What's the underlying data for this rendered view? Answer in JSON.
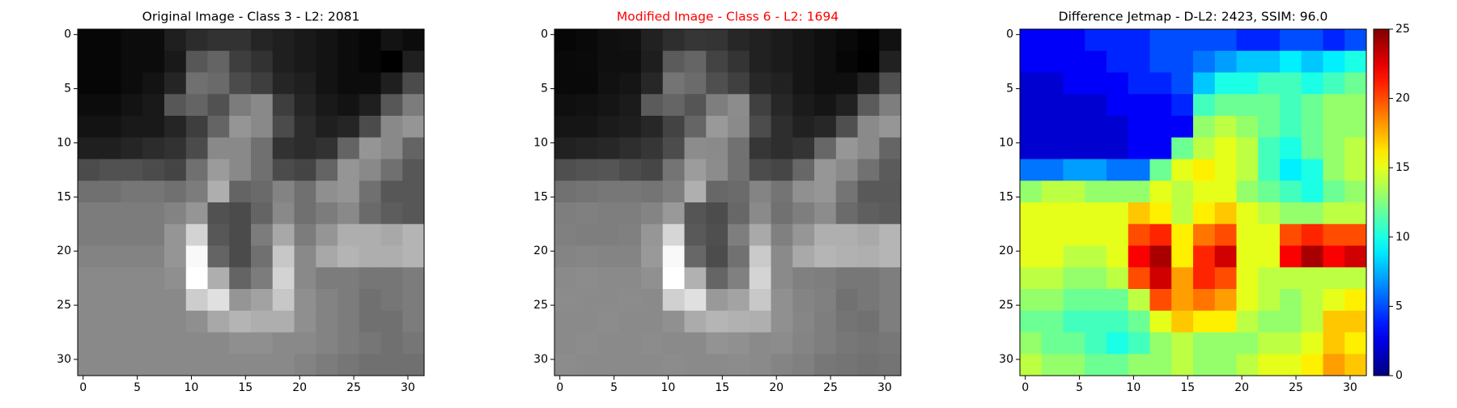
{
  "chart_data": [
    {
      "type": "heatmap",
      "title": "Original Image - Class 3 - L2: 2081",
      "title_color": "#000000",
      "cmap": "gray",
      "xlim": [
        -0.5,
        31.5
      ],
      "ylim": [
        31.5,
        -0.5
      ],
      "xticks": [
        0,
        5,
        10,
        15,
        20,
        25,
        30
      ],
      "yticks": [
        0,
        5,
        10,
        15,
        20,
        25,
        30
      ],
      "values": [
        [
          35,
          35,
          40,
          40,
          55,
          65,
          70,
          70,
          60,
          55,
          50,
          45,
          40,
          35,
          45,
          40
        ],
        [
          35,
          35,
          40,
          40,
          50,
          100,
          110,
          80,
          70,
          55,
          50,
          45,
          40,
          35,
          30,
          55
        ],
        [
          35,
          35,
          40,
          45,
          60,
          120,
          115,
          90,
          80,
          60,
          55,
          45,
          40,
          40,
          55,
          90
        ],
        [
          40,
          40,
          45,
          50,
          100,
          110,
          95,
          130,
          140,
          80,
          60,
          50,
          45,
          55,
          100,
          130
        ],
        [
          45,
          45,
          50,
          50,
          60,
          80,
          110,
          150,
          140,
          90,
          65,
          55,
          60,
          90,
          140,
          150
        ],
        [
          55,
          55,
          60,
          65,
          70,
          90,
          140,
          140,
          120,
          70,
          65,
          70,
          110,
          150,
          140,
          110
        ],
        [
          90,
          95,
          95,
          90,
          85,
          120,
          155,
          140,
          120,
          90,
          85,
          110,
          150,
          140,
          120,
          100
        ],
        [
          120,
          120,
          125,
          125,
          120,
          130,
          170,
          110,
          115,
          135,
          120,
          145,
          150,
          120,
          100,
          100
        ],
        [
          130,
          130,
          130,
          130,
          135,
          150,
          95,
          90,
          110,
          140,
          120,
          130,
          140,
          115,
          105,
          100
        ],
        [
          130,
          130,
          130,
          130,
          150,
          200,
          100,
          90,
          130,
          165,
          130,
          150,
          170,
          170,
          165,
          175
        ],
        [
          135,
          135,
          135,
          135,
          150,
          230,
          110,
          90,
          120,
          190,
          140,
          165,
          175,
          170,
          170,
          175
        ],
        [
          140,
          140,
          140,
          140,
          145,
          235,
          170,
          110,
          130,
          200,
          140,
          130,
          130,
          125,
          125,
          130
        ],
        [
          140,
          140,
          140,
          140,
          140,
          195,
          210,
          150,
          160,
          190,
          145,
          135,
          130,
          120,
          125,
          130
        ],
        [
          140,
          140,
          140,
          140,
          140,
          145,
          165,
          175,
          170,
          170,
          145,
          135,
          130,
          120,
          120,
          130
        ],
        [
          140,
          140,
          140,
          140,
          140,
          140,
          140,
          145,
          145,
          140,
          140,
          135,
          130,
          125,
          120,
          125
        ],
        [
          140,
          140,
          140,
          140,
          140,
          140,
          140,
          140,
          140,
          140,
          135,
          130,
          125,
          120,
          120,
          120
        ]
      ]
    },
    {
      "type": "heatmap",
      "title": "Modified Image - Class 6 - L2: 1694",
      "title_color": "#ff0000",
      "cmap": "gray",
      "xlim": [
        -0.5,
        31.5
      ],
      "ylim": [
        31.5,
        -0.5
      ],
      "xticks": [
        0,
        5,
        10,
        15,
        20,
        25,
        30
      ],
      "yticks": [
        0,
        5,
        10,
        15,
        20,
        25,
        30
      ],
      "values": [
        [
          33,
          35,
          40,
          42,
          55,
          65,
          72,
          70,
          60,
          55,
          50,
          45,
          40,
          35,
          30,
          42
        ],
        [
          35,
          36,
          40,
          40,
          52,
          102,
          110,
          82,
          70,
          55,
          50,
          45,
          40,
          33,
          28,
          55
        ],
        [
          35,
          35,
          42,
          45,
          60,
          122,
          115,
          92,
          80,
          60,
          55,
          45,
          40,
          40,
          55,
          92
        ],
        [
          40,
          42,
          45,
          50,
          102,
          110,
          97,
          130,
          142,
          80,
          60,
          50,
          45,
          55,
          102,
          130
        ],
        [
          45,
          45,
          50,
          52,
          60,
          82,
          110,
          152,
          140,
          90,
          65,
          55,
          60,
          92,
          140,
          150
        ],
        [
          55,
          57,
          60,
          65,
          72,
          90,
          142,
          140,
          120,
          72,
          65,
          70,
          112,
          150,
          140,
          110
        ],
        [
          92,
          95,
          97,
          90,
          85,
          122,
          155,
          142,
          120,
          90,
          85,
          112,
          150,
          140,
          120,
          102
        ],
        [
          120,
          122,
          125,
          125,
          122,
          130,
          170,
          112,
          115,
          135,
          122,
          145,
          150,
          122,
          100,
          100
        ],
        [
          130,
          132,
          130,
          130,
          135,
          152,
          97,
          90,
          112,
          140,
          120,
          130,
          142,
          115,
          105,
          102
        ],
        [
          132,
          130,
          130,
          132,
          150,
          202,
          100,
          92,
          130,
          165,
          132,
          150,
          170,
          170,
          165,
          175
        ],
        [
          135,
          137,
          135,
          135,
          152,
          230,
          112,
          90,
          120,
          192,
          140,
          165,
          175,
          172,
          170,
          175
        ],
        [
          140,
          142,
          140,
          140,
          145,
          235,
          172,
          110,
          132,
          200,
          140,
          132,
          130,
          125,
          125,
          130
        ],
        [
          142,
          140,
          140,
          142,
          140,
          197,
          210,
          152,
          160,
          190,
          145,
          135,
          132,
          120,
          125,
          130
        ],
        [
          140,
          140,
          142,
          140,
          140,
          145,
          167,
          175,
          172,
          170,
          145,
          137,
          130,
          122,
          120,
          130
        ],
        [
          140,
          142,
          140,
          140,
          142,
          140,
          140,
          147,
          145,
          140,
          142,
          135,
          130,
          125,
          122,
          125
        ],
        [
          142,
          140,
          140,
          140,
          140,
          142,
          140,
          140,
          142,
          140,
          135,
          132,
          125,
          122,
          120,
          122
        ]
      ]
    },
    {
      "type": "heatmap",
      "title": "Difference Jetmap - D-L2: 2423, SSIM: 96.0",
      "title_color": "#000000",
      "cmap": "jet",
      "xlim": [
        -0.5,
        31.5
      ],
      "ylim": [
        31.5,
        -0.5
      ],
      "xticks": [
        0,
        5,
        10,
        15,
        20,
        25,
        30
      ],
      "yticks": [
        0,
        5,
        10,
        15,
        20,
        25,
        30
      ],
      "clim": [
        0,
        25
      ],
      "cticks": [
        0,
        5,
        10,
        15,
        20,
        25
      ],
      "values": [
        [
          3,
          3,
          3,
          4,
          4,
          4,
          5,
          5,
          5,
          5,
          4,
          4,
          5,
          5,
          4,
          5
        ],
        [
          3,
          3,
          3,
          3,
          4,
          4,
          5,
          5,
          6,
          7,
          8,
          8,
          9,
          8,
          9,
          10
        ],
        [
          2,
          2,
          3,
          3,
          3,
          4,
          4,
          5,
          8,
          10,
          10,
          11,
          11,
          10,
          11,
          12
        ],
        [
          2,
          2,
          2,
          2,
          3,
          3,
          3,
          4,
          11,
          12,
          12,
          12,
          11,
          12,
          13,
          13
        ],
        [
          2,
          2,
          2,
          2,
          2,
          3,
          3,
          3,
          13,
          14,
          13,
          12,
          11,
          12,
          13,
          13
        ],
        [
          2,
          2,
          2,
          2,
          2,
          3,
          3,
          12,
          14,
          15,
          14,
          11,
          10,
          12,
          13,
          14
        ],
        [
          6,
          6,
          7,
          7,
          6,
          6,
          12,
          15,
          16,
          15,
          14,
          11,
          9,
          10,
          13,
          14
        ],
        [
          13,
          14,
          14,
          13,
          13,
          13,
          15,
          14,
          15,
          15,
          13,
          12,
          11,
          10,
          12,
          13
        ],
        [
          15,
          15,
          15,
          15,
          15,
          17,
          16,
          14,
          16,
          17,
          15,
          14,
          13,
          13,
          14,
          14
        ],
        [
          15,
          15,
          15,
          15,
          15,
          20,
          21,
          16,
          19,
          20,
          15,
          15,
          20,
          21,
          20,
          20
        ],
        [
          15,
          15,
          14,
          14,
          15,
          22,
          24,
          16,
          21,
          23,
          15,
          15,
          22,
          24,
          22,
          23
        ],
        [
          14,
          14,
          13,
          13,
          14,
          20,
          23,
          18,
          21,
          20,
          15,
          14,
          14,
          14,
          14,
          14
        ],
        [
          13,
          13,
          12,
          12,
          12,
          14,
          20,
          18,
          19,
          18,
          15,
          14,
          13,
          14,
          15,
          16
        ],
        [
          12,
          12,
          11,
          11,
          11,
          12,
          15,
          17,
          16,
          16,
          14,
          13,
          13,
          14,
          17,
          17
        ],
        [
          13,
          12,
          12,
          11,
          10,
          11,
          13,
          14,
          13,
          13,
          13,
          14,
          14,
          15,
          17,
          16
        ],
        [
          14,
          13,
          13,
          12,
          12,
          13,
          13,
          14,
          13,
          13,
          14,
          15,
          15,
          16,
          18,
          17
        ]
      ]
    }
  ]
}
